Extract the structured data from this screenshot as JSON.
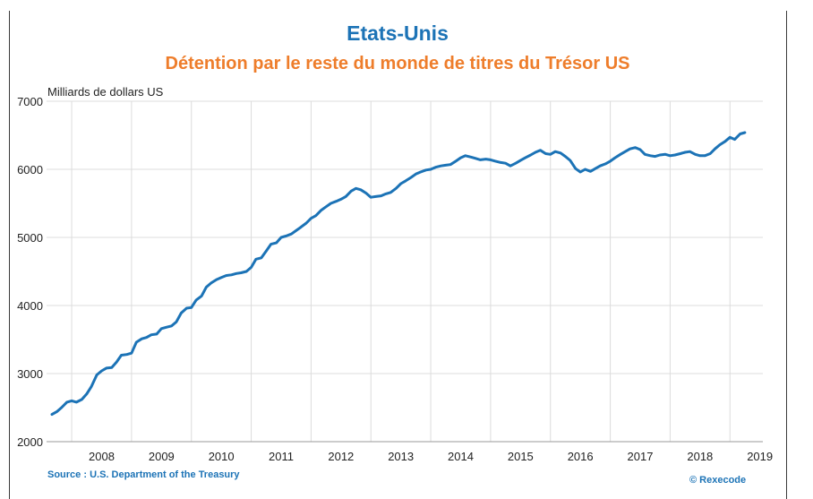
{
  "title": "Etats-Unis",
  "subtitle": "Détention par le reste du monde de titres du Trésor US",
  "source": "Source : U.S. Department of the Treasury",
  "copyright": "© Rexecode",
  "colors": {
    "title": "#1c73b6",
    "subtitle": "#ee7d2b",
    "line": "#1c73b6",
    "grid": "#dcdcdc"
  },
  "chart_data": {
    "type": "line",
    "title": "Détention par le reste du monde de titres du Trésor US",
    "ylabel": "Milliards de dollars US",
    "xlabel": "",
    "ylim": [
      2000,
      7000
    ],
    "xlim": [
      2007.58,
      2019.55
    ],
    "grid": true,
    "yticks": [
      2000,
      3000,
      4000,
      5000,
      6000,
      7000
    ],
    "xtick_labels": [
      "2008",
      "2009",
      "2010",
      "2011",
      "2012",
      "2013",
      "2014",
      "2015",
      "2016",
      "2017",
      "2018",
      "2019"
    ],
    "series": [
      {
        "name": "Détention par le reste du monde de titres du Trésor US",
        "x": [
          2007.67,
          2007.75,
          2007.83,
          2007.92,
          2008.0,
          2008.08,
          2008.17,
          2008.25,
          2008.33,
          2008.42,
          2008.5,
          2008.58,
          2008.67,
          2008.75,
          2008.83,
          2008.92,
          2009.0,
          2009.08,
          2009.17,
          2009.25,
          2009.33,
          2009.42,
          2009.5,
          2009.58,
          2009.67,
          2009.75,
          2009.83,
          2009.92,
          2010.0,
          2010.08,
          2010.17,
          2010.25,
          2010.33,
          2010.42,
          2010.5,
          2010.58,
          2010.67,
          2010.75,
          2010.83,
          2010.92,
          2011.0,
          2011.08,
          2011.17,
          2011.25,
          2011.33,
          2011.42,
          2011.5,
          2011.58,
          2011.67,
          2011.75,
          2011.83,
          2011.92,
          2012.0,
          2012.08,
          2012.17,
          2012.25,
          2012.33,
          2012.42,
          2012.5,
          2012.58,
          2012.67,
          2012.75,
          2012.83,
          2012.92,
          2013.0,
          2013.08,
          2013.17,
          2013.25,
          2013.33,
          2013.42,
          2013.5,
          2013.58,
          2013.67,
          2013.75,
          2013.83,
          2013.92,
          2014.0,
          2014.08,
          2014.17,
          2014.25,
          2014.33,
          2014.42,
          2014.5,
          2014.58,
          2014.67,
          2014.75,
          2014.83,
          2014.92,
          2015.0,
          2015.08,
          2015.17,
          2015.25,
          2015.33,
          2015.42,
          2015.5,
          2015.58,
          2015.67,
          2015.75,
          2015.83,
          2015.92,
          2016.0,
          2016.08,
          2016.17,
          2016.25,
          2016.33,
          2016.42,
          2016.5,
          2016.58,
          2016.67,
          2016.75,
          2016.83,
          2016.92,
          2017.0,
          2017.08,
          2017.17,
          2017.25,
          2017.33,
          2017.42,
          2017.5,
          2017.58,
          2017.67,
          2017.75,
          2017.83,
          2017.92,
          2018.0,
          2018.08,
          2018.17,
          2018.25,
          2018.33,
          2018.42,
          2018.5,
          2018.58,
          2018.67,
          2018.75,
          2018.83,
          2018.92,
          2019.0,
          2019.08,
          2019.17,
          2019.25
        ],
        "values": [
          2400,
          2440,
          2500,
          2580,
          2600,
          2580,
          2620,
          2700,
          2810,
          2980,
          3040,
          3080,
          3090,
          3170,
          3270,
          3280,
          3300,
          3460,
          3510,
          3530,
          3570,
          3580,
          3660,
          3680,
          3700,
          3760,
          3890,
          3960,
          3970,
          4080,
          4140,
          4270,
          4330,
          4380,
          4410,
          4440,
          4450,
          4470,
          4480,
          4500,
          4560,
          4680,
          4700,
          4800,
          4900,
          4920,
          5000,
          5020,
          5050,
          5100,
          5150,
          5210,
          5280,
          5320,
          5400,
          5450,
          5500,
          5530,
          5560,
          5600,
          5680,
          5720,
          5700,
          5650,
          5590,
          5600,
          5610,
          5640,
          5660,
          5720,
          5790,
          5830,
          5880,
          5930,
          5960,
          5990,
          6000,
          6030,
          6050,
          6060,
          6070,
          6120,
          6170,
          6200,
          6180,
          6160,
          6140,
          6150,
          6140,
          6120,
          6100,
          6090,
          6050,
          6090,
          6130,
          6170,
          6210,
          6250,
          6280,
          6230,
          6220,
          6260,
          6240,
          6190,
          6130,
          6010,
          5960,
          6000,
          5970,
          6010,
          6050,
          6080,
          6120,
          6170,
          6220,
          6260,
          6300,
          6320,
          6290,
          6220,
          6200,
          6190,
          6210,
          6220,
          6200,
          6210,
          6230,
          6250,
          6260,
          6220,
          6200,
          6200,
          6230,
          6300,
          6360,
          6410,
          6470,
          6440,
          6520,
          6540
        ]
      }
    ]
  }
}
